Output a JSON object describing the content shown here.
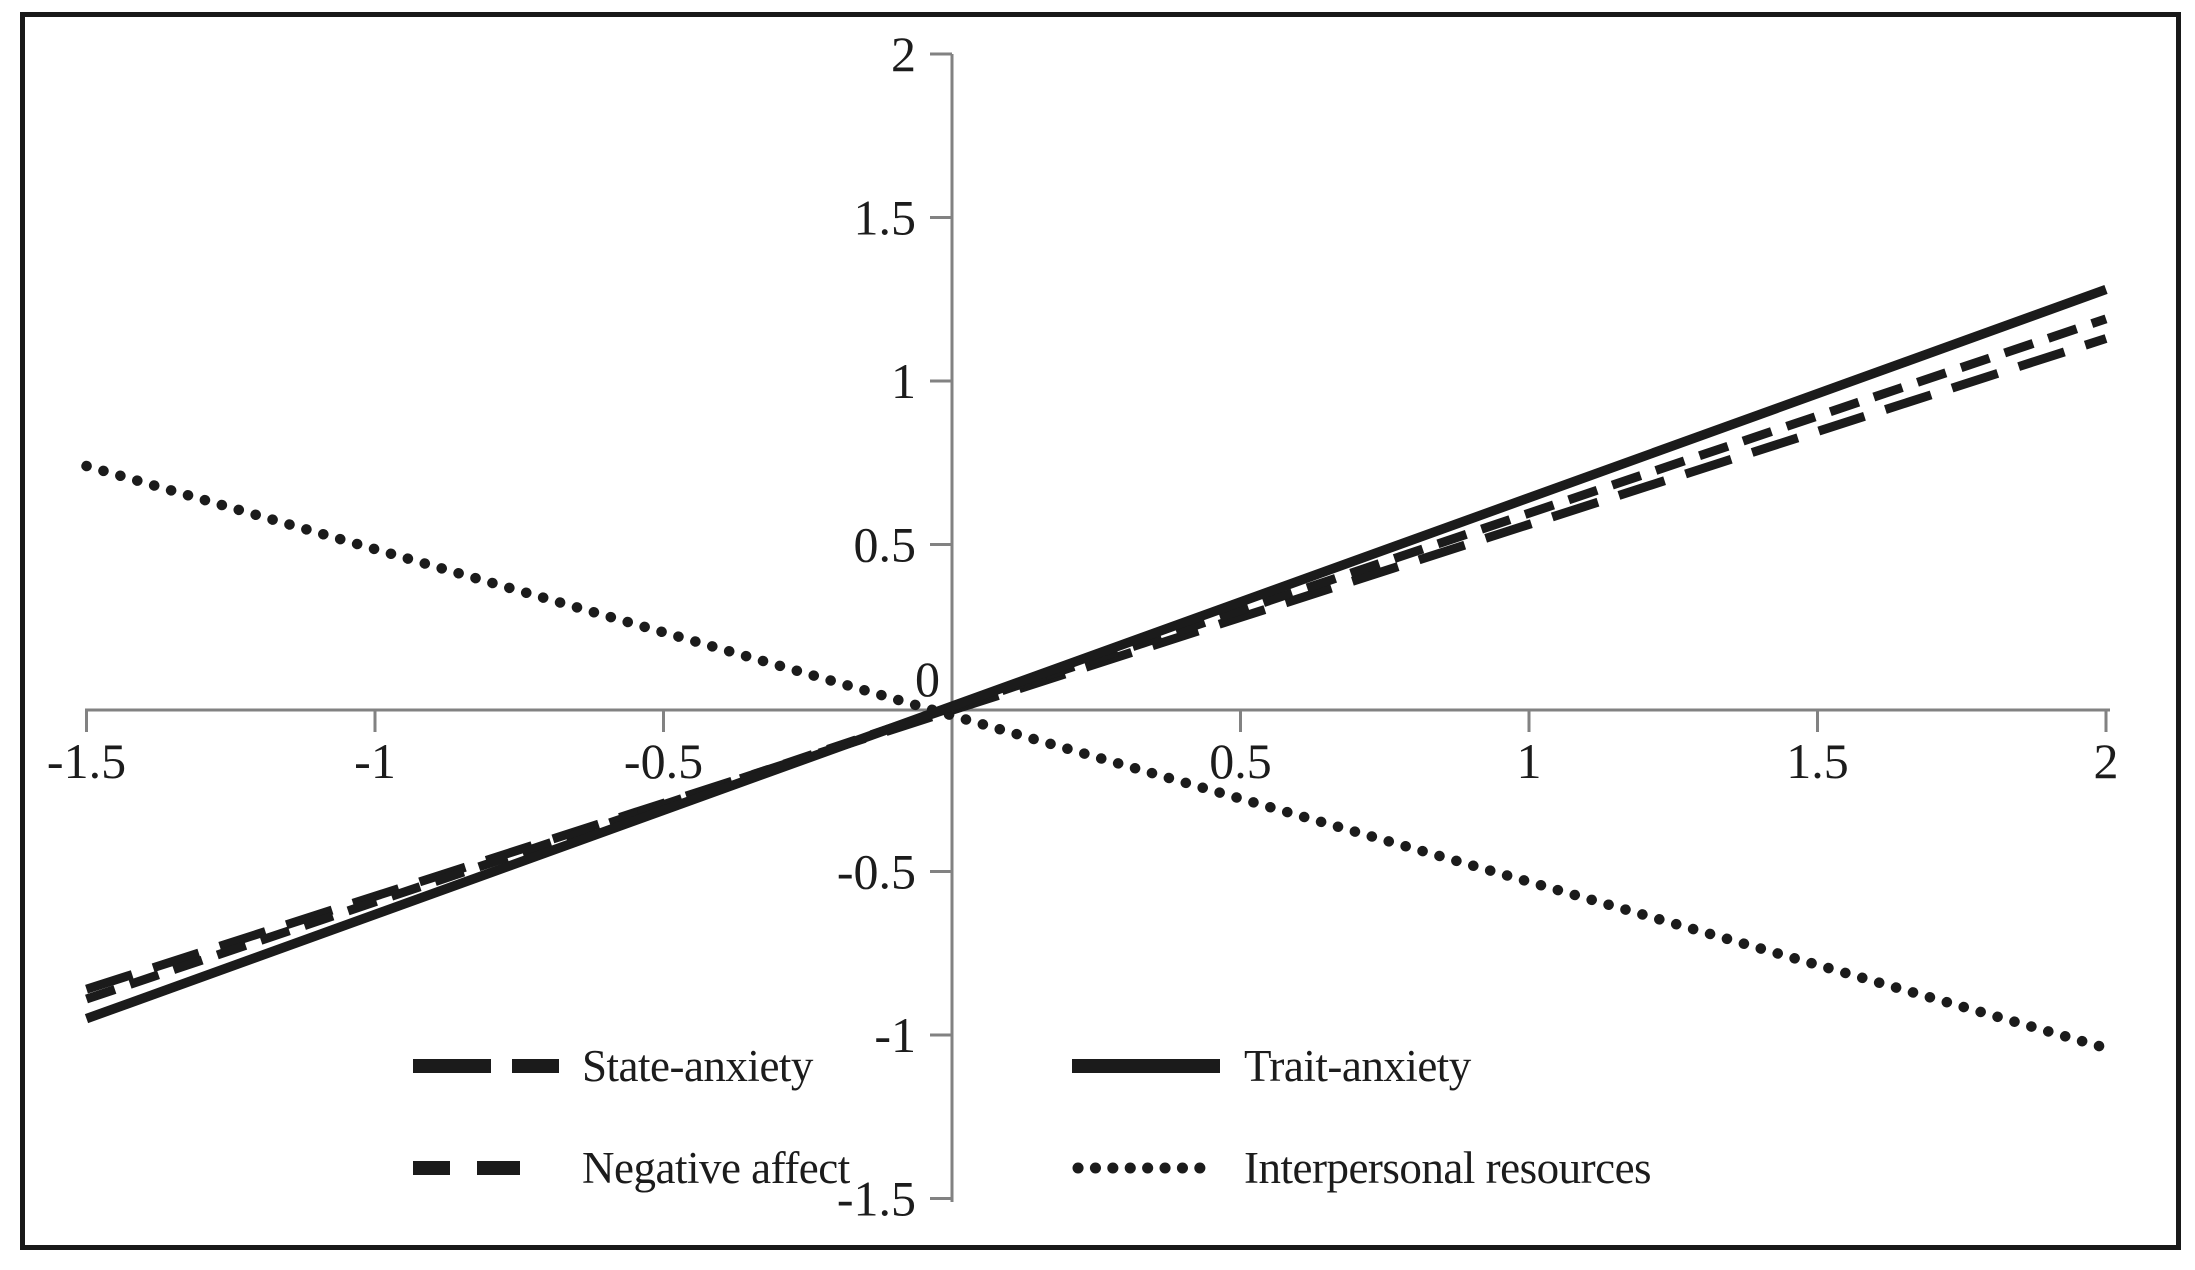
{
  "figure": {
    "background_color": "#ffffff",
    "frame_color": "#191919",
    "axis_color": "#828282",
    "line_color": "#1b1b1b",
    "text_color": "#1c1c1c"
  },
  "chart_data": {
    "type": "line",
    "title": "",
    "xlabel": "",
    "ylabel": "",
    "xlim": [
      -1.5,
      2
    ],
    "ylim": [
      -1.5,
      2
    ],
    "grid": false,
    "x_axis": {
      "ticks": [
        {
          "value": -1.5,
          "label": "-1.5"
        },
        {
          "value": -1,
          "label": "-1"
        },
        {
          "value": -0.5,
          "label": "-0.5"
        },
        {
          "value": 0.5,
          "label": "0.5"
        },
        {
          "value": 1,
          "label": "1"
        },
        {
          "value": 1.5,
          "label": "1.5"
        },
        {
          "value": 2,
          "label": "2"
        }
      ]
    },
    "y_axis": {
      "ticks": [
        {
          "value": 2,
          "label": "2"
        },
        {
          "value": 1.5,
          "label": "1.5"
        },
        {
          "value": 1,
          "label": "1"
        },
        {
          "value": 0.5,
          "label": "0.5"
        },
        {
          "value": -0.5,
          "label": "-0.5"
        },
        {
          "value": -1,
          "label": "-1"
        },
        {
          "value": -1.5,
          "label": "-1.5"
        }
      ],
      "zero_label": "0"
    },
    "series": [
      {
        "name": "State-anxiety",
        "line_style": "long-dash",
        "slope": 0.57,
        "x": [
          -1.5,
          2
        ],
        "y": [
          -0.86,
          1.13
        ]
      },
      {
        "name": "Negative affect",
        "line_style": "medium-dash",
        "slope": 0.6,
        "x": [
          -1.5,
          2
        ],
        "y": [
          -0.89,
          1.19
        ]
      },
      {
        "name": "Trait-anxiety",
        "line_style": "solid",
        "slope": 0.635,
        "x": [
          -1.5,
          2
        ],
        "y": [
          -0.95,
          1.28
        ]
      },
      {
        "name": "Interpersonal resources",
        "line_style": "dotted",
        "slope": -0.51,
        "x": [
          -1.5,
          2
        ],
        "y": [
          0.74,
          -1.04
        ]
      }
    ],
    "legend": {
      "position": "bottom-inside",
      "columns": [
        [
          "State-anxiety",
          "Negative affect"
        ],
        [
          "Trait-anxiety",
          "Interpersonal resources"
        ]
      ]
    }
  }
}
